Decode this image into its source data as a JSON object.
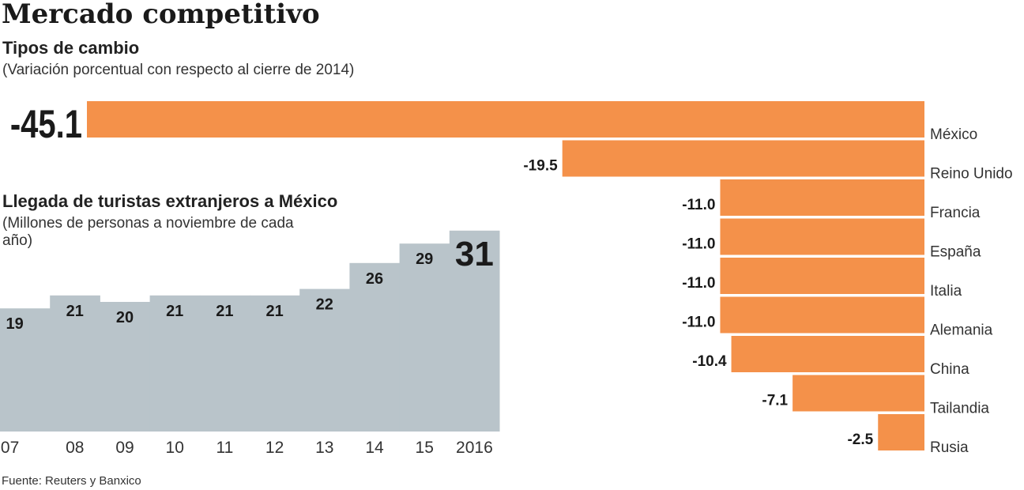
{
  "title": "Mercado competitivo",
  "colors": {
    "bars": "#f4914a",
    "area": "#b9c4ca",
    "text": "#222222"
  },
  "chart_data": [
    {
      "type": "bar",
      "orientation": "horizontal",
      "title": "Tipos de cambio",
      "subtitle": "(Variación porcentual con respecto al cierre de 2014)",
      "categories": [
        "México",
        "Reino Unido",
        "Francia",
        "España",
        "Italia",
        "Alemania",
        "China",
        "Tailandia",
        "Rusia"
      ],
      "values": [
        -45.1,
        -19.5,
        -11.0,
        -11.0,
        -11.0,
        -11.0,
        -10.4,
        -7.1,
        -2.5
      ],
      "labels": [
        "-45.1",
        "-19.5",
        "-11.0",
        "-11.0",
        "-11.0",
        "-11.0",
        "-10.4",
        "-7.1",
        "-2.5"
      ],
      "xlim": [
        -45.1,
        0
      ]
    },
    {
      "type": "area",
      "step": true,
      "title": "Llegada de turistas extranjeros a México",
      "subtitle": "(Millones de personas a noviembre de cada año)",
      "categories": [
        "07",
        "08",
        "09",
        "10",
        "11",
        "12",
        "13",
        "14",
        "15",
        "2016"
      ],
      "values": [
        19,
        21,
        20,
        21,
        21,
        21,
        22,
        26,
        29,
        31
      ],
      "ylim": [
        0,
        31
      ]
    }
  ],
  "source": "Fuente: Reuters y Banxico"
}
